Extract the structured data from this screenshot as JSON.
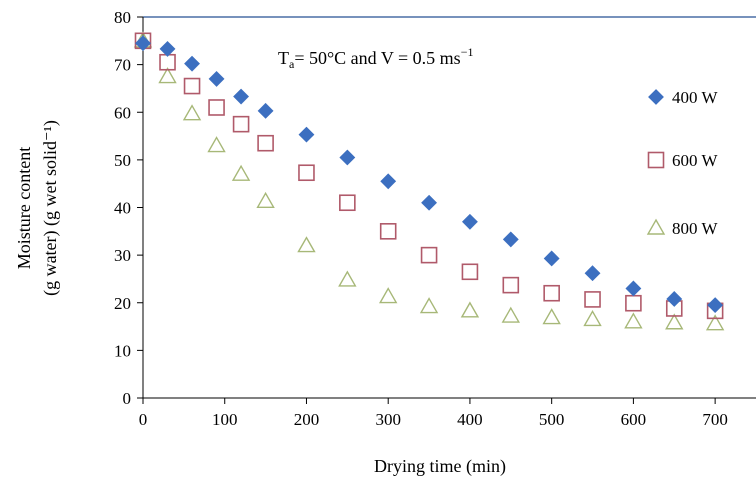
{
  "chart_data": {
    "type": "scatter",
    "title": "",
    "xlabel": "Drying time (min)",
    "ylabel_line1": "Moisture content",
    "ylabel_line2": "(g water) (g wet solid⁻¹)",
    "annotation": {
      "T": "T",
      "sub": "a",
      "rest": "= 50°C and V = 0.5 ms",
      "sup": "−1"
    },
    "xlim": [
      0,
      750
    ],
    "ylim": [
      0,
      80
    ],
    "xticks": [
      0,
      100,
      200,
      300,
      400,
      500,
      600,
      700
    ],
    "yticks": [
      0,
      10,
      20,
      30,
      40,
      50,
      60,
      70,
      80
    ],
    "grid": false,
    "legend_position": "right",
    "series": [
      {
        "name": "400 W",
        "marker": "diamond",
        "color": "#3c6fc0",
        "x": [
          0,
          30,
          60,
          90,
          120,
          150,
          200,
          250,
          300,
          350,
          400,
          450,
          500,
          550,
          600,
          650,
          700
        ],
        "y": [
          74.5,
          73.3,
          70.2,
          67.0,
          63.3,
          60.3,
          55.3,
          50.5,
          45.5,
          41.0,
          37.0,
          33.3,
          29.3,
          26.2,
          23.0,
          20.8,
          19.5
        ]
      },
      {
        "name": "600 W",
        "marker": "square",
        "color": "#b05a6a",
        "x": [
          0,
          30,
          60,
          90,
          120,
          150,
          200,
          250,
          300,
          350,
          400,
          450,
          500,
          550,
          600,
          650,
          700
        ],
        "y": [
          75.0,
          70.5,
          65.5,
          61.0,
          57.5,
          53.5,
          47.3,
          41.0,
          35.0,
          30.0,
          26.5,
          23.7,
          22.0,
          20.7,
          19.9,
          18.8,
          18.3
        ]
      },
      {
        "name": "800 W",
        "marker": "triangle",
        "color": "#a7b878",
        "x": [
          0,
          30,
          60,
          90,
          120,
          150,
          200,
          250,
          300,
          350,
          400,
          450,
          500,
          550,
          600,
          650,
          700
        ],
        "y": [
          75.0,
          67.5,
          59.7,
          53.0,
          47.0,
          41.3,
          32.0,
          24.8,
          21.3,
          19.2,
          18.3,
          17.2,
          16.9,
          16.5,
          16.0,
          15.8,
          15.6
        ]
      }
    ]
  }
}
